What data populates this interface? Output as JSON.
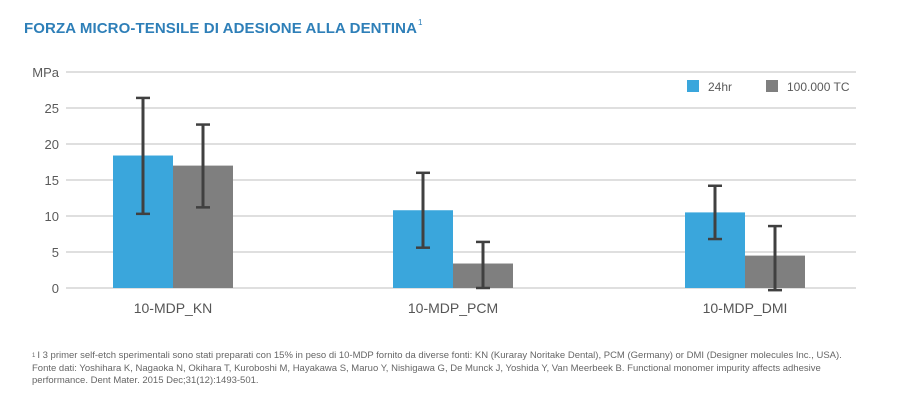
{
  "title": "FORZA MICRO-TENSILE DI ADESIONE ALLA DENTINA",
  "title_sup": "1",
  "footnote_sup": "1",
  "footnote": "I 3 primer self-etch sperimentali sono stati preparati con 15% in peso di 10-MDP fornito da diverse fonti: KN (Kuraray Noritake Dental), PCM (Germany) or DMI (Designer molecules Inc., USA). Fonte dati: Yoshihara K, Nagaoka N, Okihara T, Kuroboshi M, Hayakawa S, Maruo Y, Nishigawa G, De Munck J, Yoshida Y, Van Meerbeek B. Functional monomer impurity affects adhesive performance. Dent Mater. 2015 Dec;31(12):1493-501.",
  "colors": {
    "title": "#2e7fb8",
    "series_24hr": "#3aa6dc",
    "series_100000": "#7f7f7f",
    "error_bar": "#404040",
    "grid": "#bfbfbf"
  },
  "chart_data": {
    "type": "bar",
    "title": "FORZA MICRO-TENSILE DI ADESIONE ALLA DENTINA",
    "ylabel": "MPa",
    "xlabel": "",
    "ylim": [
      0,
      30
    ],
    "yticks": [
      0,
      5,
      10,
      15,
      20,
      25,
      30
    ],
    "ytick_labels": [
      "0",
      "5",
      "10",
      "15",
      "20",
      "25",
      "MPa"
    ],
    "grid": true,
    "legend_position": "top-right",
    "categories": [
      "10-MDP_KN",
      "10-MDP_PCM",
      "10-MDP_DMI"
    ],
    "series": [
      {
        "name": "24hr",
        "values": [
          18.4,
          10.8,
          10.5
        ],
        "error_low": [
          10.3,
          5.6,
          6.8
        ],
        "error_high": [
          26.4,
          16.0,
          14.2
        ]
      },
      {
        "name": "100.000 TC",
        "values": [
          17.0,
          3.4,
          4.5
        ],
        "error_low": [
          11.2,
          0.0,
          -0.3
        ],
        "error_high": [
          22.7,
          6.4,
          8.6
        ]
      }
    ]
  }
}
